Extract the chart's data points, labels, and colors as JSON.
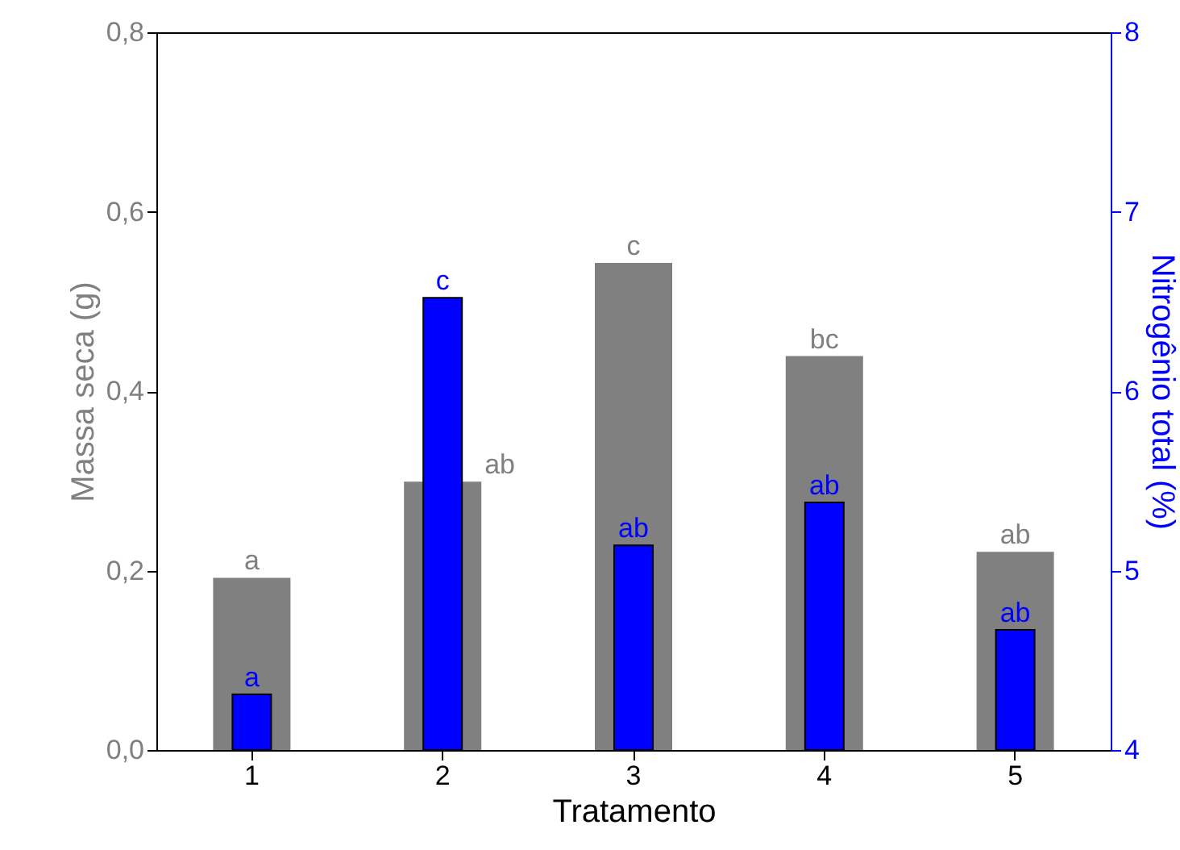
{
  "chart_data": {
    "type": "bar",
    "xlabel": "Tratamento",
    "ylabel": "Massa seca (g)",
    "y2label": "Nitrogênio total (%)",
    "categories": [
      "1",
      "2",
      "3",
      "4",
      "5"
    ],
    "series": [
      {
        "color": "#808080",
        "values": [
          0.192,
          0.299,
          0.543,
          0.439,
          0.221
        ],
        "value_labels": [
          "a",
          "ab",
          "c",
          "bc",
          "ab"
        ]
      },
      {
        "color": "#0000ff",
        "axis": "y2",
        "values": [
          4.31,
          6.52,
          5.14,
          5.38,
          4.67
        ],
        "value_labels": [
          "a",
          "c",
          "ab",
          "ab",
          "ab"
        ]
      }
    ],
    "ylim": [
      0,
      0.8
    ],
    "yticks": [
      {
        "value": 0,
        "label": "0,0"
      },
      {
        "value": 0.2,
        "label": "0,2"
      },
      {
        "value": 0.4,
        "label": "0,4"
      },
      {
        "value": 0.6,
        "label": "0,6"
      },
      {
        "value": 0.8,
        "label": "0,8"
      }
    ],
    "y2lim": [
      4,
      8
    ],
    "y2ticks": [
      4,
      5,
      6,
      7,
      8
    ]
  }
}
